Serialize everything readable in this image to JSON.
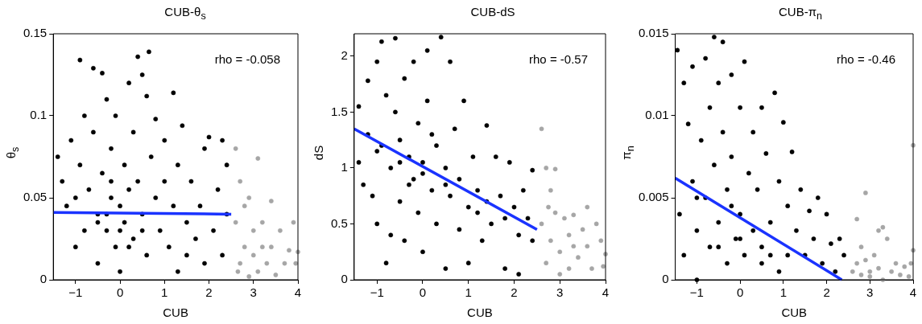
{
  "chart_data": [
    {
      "type": "scatter",
      "title": "CUB-θ$_{s}$",
      "xlabel": "CUB",
      "ylabel": "θ$_{s}$",
      "annotations": [
        "rho = -0.058"
      ],
      "marker": "circle",
      "xlim": [
        -1.5,
        4
      ],
      "xticks": [
        -1,
        0,
        1,
        2,
        3,
        4
      ],
      "ylim": [
        0,
        0.15
      ],
      "yticks": [
        0,
        0.05,
        0.1,
        0.15
      ],
      "series": [
        {
          "color": "#000000",
          "x": [
            -1.4,
            -1.3,
            -1.2,
            -1.1,
            -1.0,
            -0.9,
            -0.9,
            -0.8,
            -0.7,
            -0.6,
            -0.6,
            -0.5,
            -0.5,
            -0.4,
            -0.4,
            -0.3,
            -0.3,
            -0.2,
            -0.2,
            -0.1,
            -0.1,
            0,
            0,
            0.1,
            0.1,
            0.2,
            0.2,
            0.3,
            0.3,
            0.4,
            0.4,
            0.5,
            0.5,
            0.6,
            0.6,
            0.65,
            0.7,
            0.8,
            0.8,
            0.9,
            1.0,
            1.0,
            1.1,
            1.2,
            1.2,
            1.3,
            1.3,
            1.4,
            1.5,
            1.6,
            1.7,
            1.8,
            1.9,
            1.9,
            2.0,
            2.1,
            2.2,
            2.3,
            2.3,
            2.4,
            2.4,
            -0.5,
            0,
            -0.3,
            0.5,
            -1.0,
            0.2,
            -0.8,
            1.5,
            -0.2
          ],
          "values": [
            0.075,
            0.06,
            0.045,
            0.085,
            0.02,
            0.134,
            0.07,
            0.03,
            0.055,
            0.129,
            0.09,
            0.04,
            0.01,
            0.126,
            0.065,
            0.03,
            0.11,
            0.05,
            0.08,
            0.02,
            0.1,
            0.045,
            0.005,
            0.07,
            0.035,
            0.12,
            0.055,
            0.025,
            0.09,
            0.136,
            0.06,
            0.125,
            0.04,
            0.112,
            0.015,
            0.139,
            0.075,
            0.05,
            0.098,
            0.03,
            0.085,
            0.06,
            0.02,
            0.114,
            0.045,
            0.07,
            0.005,
            0.094,
            0.035,
            0.06,
            0.025,
            0.045,
            0.01,
            0.08,
            0.087,
            0.03,
            0.055,
            0.085,
            0.015,
            0.07,
            0.04,
            0.035,
            0.03,
            0.04,
            0.03,
            0.05,
            0.02,
            0.1,
            0.015,
            0.06
          ]
        },
        {
          "color": "#a6a6a6",
          "x": [
            2.6,
            2.6,
            2.7,
            2.7,
            2.8,
            2.8,
            2.9,
            2.9,
            3.0,
            3.0,
            3.1,
            3.1,
            3.2,
            3.3,
            3.4,
            3.4,
            3.5,
            3.6,
            3.7,
            3.8,
            3.9,
            3.95,
            4.0,
            3.2,
            2.65
          ],
          "values": [
            0.08,
            0.035,
            0.06,
            0.01,
            0.045,
            0.02,
            0.05,
            0.002,
            0.03,
            0.015,
            0.074,
            0.005,
            0.02,
            0.01,
            0.048,
            0.02,
            0.003,
            0.03,
            0.01,
            0.018,
            0.035,
            0.01,
            0.017,
            0.035,
            0.005
          ]
        },
        {
          "type": "line",
          "marker": "none",
          "color": "#1a33ff",
          "x": [
            -1.5,
            2.5
          ],
          "values": [
            0.041,
            0.04
          ]
        }
      ]
    },
    {
      "type": "scatter",
      "title": "CUB-dS",
      "xlabel": "CUB",
      "ylabel": "dS",
      "annotations": [
        "rho = -0.57"
      ],
      "marker": "circle",
      "xlim": [
        -1.5,
        4
      ],
      "xticks": [
        -1,
        0,
        1,
        2,
        3,
        4
      ],
      "ylim": [
        0,
        2.2
      ],
      "yticks": [
        0,
        0.5,
        1,
        1.5,
        2
      ],
      "series": [
        {
          "color": "#000000",
          "x": [
            -1.4,
            -1.4,
            -1.3,
            -1.2,
            -1.2,
            -1.1,
            -1.0,
            -1.0,
            -0.9,
            -0.9,
            -0.8,
            -0.8,
            -0.7,
            -0.7,
            -0.6,
            -0.6,
            -0.5,
            -0.5,
            -0.4,
            -0.4,
            -0.3,
            -0.2,
            -0.2,
            -0.1,
            -0.1,
            0,
            0,
            0.1,
            0.1,
            0.2,
            0.3,
            0.3,
            0.4,
            0.5,
            0.5,
            0.6,
            0.6,
            0.7,
            0.8,
            0.8,
            0.9,
            1.0,
            1.0,
            1.1,
            1.2,
            1.3,
            1.4,
            1.4,
            1.5,
            1.6,
            1.7,
            1.8,
            1.8,
            1.9,
            2.0,
            2.1,
            2.1,
            2.2,
            2.3,
            2.4,
            2.4,
            -0.5,
            0,
            0.5,
            -1.0,
            0.2,
            1.2,
            -0.3
          ],
          "values": [
            1.55,
            1.05,
            0.85,
            1.78,
            1.3,
            0.75,
            1.95,
            0.5,
            2.13,
            1.2,
            0.15,
            1.65,
            1.0,
            0.4,
            2.16,
            1.5,
            1.25,
            0.7,
            1.8,
            0.35,
            1.1,
            1.95,
            0.9,
            1.4,
            0.6,
            1.05,
            0.25,
            2.05,
            1.6,
            0.8,
            1.2,
            0.5,
            2.17,
            1.0,
            0.1,
            1.95,
            0.75,
            1.35,
            0.9,
            0.45,
            1.6,
            0.65,
            0.15,
            1.1,
            0.8,
            0.35,
            1.38,
            0.7,
            0.5,
            1.1,
            0.75,
            0.1,
            0.55,
            1.05,
            0.65,
            0.4,
            0.05,
            0.8,
            0.55,
            0.98,
            0.35,
            1.05,
            0.95,
            0.85,
            1.15,
            1.3,
            0.6,
            0.85
          ]
        },
        {
          "color": "#a6a6a6",
          "x": [
            2.6,
            2.6,
            2.7,
            2.7,
            2.8,
            2.8,
            2.9,
            2.9,
            3.0,
            3.0,
            3.1,
            3.2,
            3.2,
            3.3,
            3.4,
            3.5,
            3.6,
            3.6,
            3.7,
            3.8,
            3.9,
            4.0,
            3.95,
            3.3,
            2.75
          ],
          "values": [
            1.35,
            0.5,
            1.0,
            0.15,
            0.8,
            0.35,
            0.99,
            0.6,
            0.25,
            0.05,
            0.55,
            0.1,
            0.4,
            0.58,
            0.2,
            0.45,
            0.65,
            0.3,
            0.1,
            0.5,
            0.35,
            0.23,
            0.12,
            0.3,
            0.65
          ]
        },
        {
          "type": "line",
          "marker": "none",
          "color": "#1a33ff",
          "x": [
            -1.5,
            2.5
          ],
          "values": [
            1.35,
            0.45
          ]
        }
      ]
    },
    {
      "type": "scatter",
      "title": "CUB-π$_{n}$",
      "xlabel": "CUB",
      "ylabel": "π$_{n}$",
      "annotations": [
        "rho = -0.46"
      ],
      "marker": "circle",
      "xlim": [
        -1.5,
        4
      ],
      "xticks": [
        -1,
        0,
        1,
        2,
        3,
        4
      ],
      "ylim": [
        0,
        0.015
      ],
      "yticks": [
        0,
        0.005,
        0.01,
        0.015
      ],
      "series": [
        {
          "color": "#000000",
          "x": [
            -1.45,
            -1.4,
            -1.3,
            -1.3,
            -1.2,
            -1.1,
            -1.1,
            -1.0,
            -1.0,
            -0.9,
            -0.8,
            -0.8,
            -0.7,
            -0.7,
            -0.6,
            -0.6,
            -0.5,
            -0.5,
            -0.4,
            -0.4,
            -0.3,
            -0.3,
            -0.2,
            -0.2,
            -0.1,
            0,
            0,
            0.1,
            0.1,
            0.2,
            0.3,
            0.3,
            0.4,
            0.5,
            0.5,
            0.6,
            0.7,
            0.8,
            0.9,
            0.9,
            1.0,
            1.1,
            1.1,
            1.2,
            1.3,
            1.4,
            1.5,
            1.6,
            1.7,
            1.8,
            1.9,
            2.0,
            2.1,
            2.2,
            2.3,
            2.4,
            -0.5,
            0,
            -1.0,
            0.5,
            -0.2,
            0.7
          ],
          "values": [
            0.014,
            0.004,
            0.012,
            0.0015,
            0.0095,
            0.013,
            0.006,
            0.003,
            0.0,
            0.0085,
            0.0135,
            0.005,
            0.0105,
            0.002,
            0.0148,
            0.007,
            0.012,
            0.0035,
            0.0145,
            0.009,
            0.001,
            0.0055,
            0.0125,
            0.0075,
            0.0025,
            0.0105,
            0.004,
            0.0133,
            0.0015,
            0.0065,
            0.009,
            0.003,
            0.0055,
            0.0105,
            0.001,
            0.0077,
            0.0035,
            0.0114,
            0.006,
            0.0005,
            0.0096,
            0.0045,
            0.0015,
            0.0078,
            0.003,
            0.0055,
            0.0015,
            0.0042,
            0.0025,
            0.005,
            0.001,
            0.004,
            0.0022,
            0.0005,
            0.0025,
            0.0015,
            0.002,
            0.0025,
            0.005,
            0.002,
            0.0045,
            0.0015
          ]
        },
        {
          "color": "#a6a6a6",
          "x": [
            2.6,
            2.7,
            2.7,
            2.8,
            2.8,
            2.9,
            2.9,
            3.0,
            3.1,
            3.2,
            3.2,
            3.3,
            3.3,
            3.4,
            3.5,
            3.6,
            3.7,
            3.8,
            3.9,
            4.0,
            4.0,
            3.95,
            3.0
          ],
          "values": [
            0.0005,
            0.0037,
            0.001,
            0.002,
            0.0003,
            0.0053,
            0.0012,
            0.0005,
            0.0015,
            0.003,
            0.0007,
            0.0032,
            0.0,
            0.0025,
            0.0005,
            0.001,
            0.0003,
            0.0008,
            0.0002,
            0.0082,
            0.0018,
            0.001,
            0.0002
          ]
        },
        {
          "type": "line",
          "marker": "none",
          "color": "#1a33ff",
          "x": [
            -1.5,
            2.35
          ],
          "values": [
            0.0062,
            0
          ]
        }
      ]
    }
  ]
}
